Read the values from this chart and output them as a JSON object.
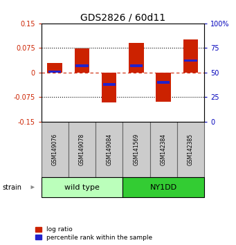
{
  "title": "GDS2826 / 60d11",
  "samples": [
    "GSM149076",
    "GSM149078",
    "GSM149084",
    "GSM141569",
    "GSM142384",
    "GSM142385"
  ],
  "log_ratios": [
    0.03,
    0.073,
    -0.092,
    0.09,
    -0.088,
    0.1
  ],
  "percentile_ranks": [
    0.51,
    0.57,
    0.38,
    0.57,
    0.4,
    0.62
  ],
  "ylim": [
    -0.15,
    0.15
  ],
  "yticks_left": [
    -0.15,
    -0.075,
    0,
    0.075,
    0.15
  ],
  "yticks_right": [
    0,
    25,
    50,
    75,
    100
  ],
  "bar_color_red": "#cc2200",
  "bar_color_blue": "#2222cc",
  "groups": [
    {
      "label": "wild type",
      "color": "#bbffbb",
      "count": 3
    },
    {
      "label": "NY1DD",
      "color": "#33cc33",
      "count": 3
    }
  ],
  "strain_label": "strain",
  "legend_items": [
    {
      "color": "#cc2200",
      "label": "log ratio"
    },
    {
      "color": "#2222cc",
      "label": "percentile rank within the sample"
    }
  ],
  "background_color": "#ffffff",
  "dotted_line_color": "#000000",
  "zero_line_color": "#cc2200",
  "tick_color_left": "#cc2200",
  "tick_color_right": "#0000bb",
  "bar_width": 0.55,
  "sample_box_color": "#cccccc",
  "sample_box_edge": "#666666",
  "title_fontsize": 10,
  "tick_fontsize": 7,
  "sample_fontsize": 5.5,
  "group_fontsize": 8,
  "legend_fontsize": 6.5,
  "strain_fontsize": 7
}
